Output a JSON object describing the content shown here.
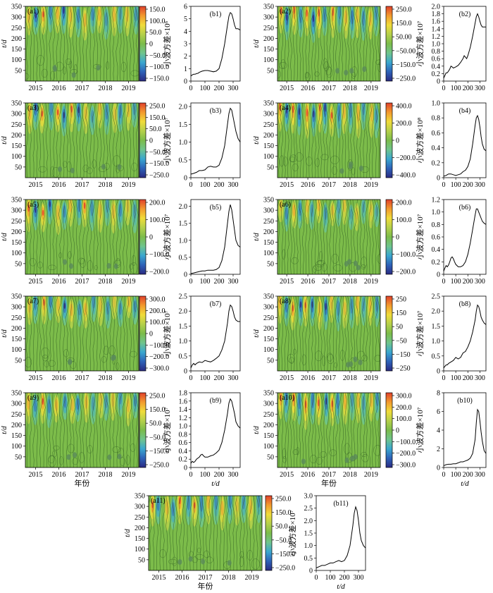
{
  "chart_data": {
    "type": "wavelet-contour-and-variance-panels",
    "contour_common": {
      "years": [
        "2015",
        "2016",
        "2017",
        "2018",
        "2019"
      ],
      "y_ticks": [
        "50",
        "100",
        "150",
        "200",
        "250",
        "300",
        "350"
      ],
      "y_label": "t/d",
      "x_label": "年份",
      "ylim": [
        0,
        350
      ]
    },
    "variance_common": {
      "x_ticks": [
        "0",
        "100",
        "200",
        "300"
      ],
      "x_label": "t/d",
      "xlim": [
        0,
        350
      ]
    },
    "colors": {
      "contour_bg": "#7cbc4a",
      "contour_line": "#2f5b22",
      "colorbar": [
        "#2a2a82",
        "#2e62b8",
        "#3aa7cf",
        "#6fc48d",
        "#7cbc4a",
        "#b5d04a",
        "#f0dc3a",
        "#f29a2e",
        "#e0402b"
      ]
    },
    "contours": [
      {
        "label": "(a1)",
        "colorbar_ticks": [
          "150.0",
          "100.0",
          "50.0",
          "0",
          "−50.0",
          "−100.0",
          "−150.0"
        ],
        "amp": 0.9,
        "xlabel": false
      },
      {
        "label": "(a2)",
        "colorbar_ticks": [
          "250.0",
          "150.0",
          "50.00",
          "−50.00",
          "−150.0",
          "−250.0"
        ],
        "amp": 1.0,
        "xlabel": false
      },
      {
        "label": "(a3)",
        "colorbar_ticks": [
          "250.0",
          "150.0",
          "50.0",
          "0",
          "−50.0",
          "−150.0",
          "−250.0"
        ],
        "amp": 0.9,
        "xlabel": false
      },
      {
        "label": "(a4)",
        "colorbar_ticks": [
          "400.0",
          "200.0",
          "0",
          "−200.0",
          "−400.0"
        ],
        "amp": 1.0,
        "xlabel": false
      },
      {
        "label": "(a5)",
        "colorbar_ticks": [
          "200.0",
          "100.0",
          "0",
          "−100.0",
          "−200.0"
        ],
        "amp": 0.9,
        "xlabel": false
      },
      {
        "label": "(a6)",
        "colorbar_ticks": [
          "200.0",
          "100.0",
          "0",
          "−100.0",
          "−200.0"
        ],
        "amp": 0.75,
        "xlabel": false
      },
      {
        "label": "(a7)",
        "colorbar_ticks": [
          "300.0",
          "200.0",
          "100.0",
          "0",
          "−100.0",
          "−200.0",
          "−300.0"
        ],
        "amp": 0.8,
        "xlabel": false
      },
      {
        "label": "(a8)",
        "colorbar_ticks": [
          "250",
          "150",
          "50",
          "−50",
          "−150",
          "−250"
        ],
        "amp": 0.95,
        "xlabel": false
      },
      {
        "label": "(a9)",
        "colorbar_ticks": [
          "250.0",
          "150.0",
          "50.0",
          "−50.0",
          "−150.0",
          "−250.0"
        ],
        "amp": 0.85,
        "xlabel": true
      },
      {
        "label": "(a10)",
        "colorbar_ticks": [
          "300.0",
          "200.0",
          "100.0",
          "0",
          "−100.0",
          "−200.0",
          "−300.0"
        ],
        "amp": 1.0,
        "xlabel": true
      },
      {
        "label": "(a11)",
        "colorbar_ticks": [
          "250.0",
          "150.0",
          "50.0",
          "−50.0",
          "−150.0",
          "−250.0"
        ],
        "amp": 0.95,
        "xlabel": true
      }
    ],
    "variance": [
      {
        "label": "(b1)",
        "ylabel": "小波方差×10⁶",
        "y_ticks": [
          "0",
          "1",
          "2",
          "3",
          "4",
          "5",
          "6"
        ],
        "ylim": [
          0,
          6
        ],
        "xlabel": false,
        "x": [
          0,
          10,
          20,
          30,
          40,
          50,
          60,
          80,
          100,
          120,
          140,
          160,
          180,
          200,
          220,
          240,
          260,
          270,
          280,
          290,
          300,
          310,
          320,
          335,
          350
        ],
        "y": [
          0.4,
          0.5,
          0.55,
          0.55,
          0.6,
          0.62,
          0.7,
          0.8,
          0.85,
          0.85,
          0.8,
          0.75,
          0.8,
          1.0,
          1.8,
          3.0,
          4.5,
          5.2,
          5.5,
          5.4,
          5.0,
          4.5,
          4.2,
          4.2,
          4.1
        ]
      },
      {
        "label": "(b2)",
        "ylabel": "小波方差×10⁷",
        "y_ticks": [
          "0",
          "0.2",
          "0.4",
          "0.6",
          "0.8",
          "1.0",
          "1.2",
          "1.4",
          "1.6",
          "1.8",
          "2.0"
        ],
        "ylim": [
          0,
          2
        ],
        "xlabel": false,
        "x": [
          0,
          10,
          20,
          30,
          40,
          50,
          60,
          70,
          80,
          100,
          120,
          140,
          160,
          170,
          180,
          190,
          200,
          220,
          240,
          260,
          270,
          280,
          290,
          300,
          310,
          320,
          335,
          350
        ],
        "y": [
          0.08,
          0.15,
          0.22,
          0.22,
          0.27,
          0.32,
          0.4,
          0.38,
          0.35,
          0.38,
          0.42,
          0.5,
          0.6,
          0.68,
          0.64,
          0.6,
          0.68,
          0.9,
          1.2,
          1.55,
          1.72,
          1.8,
          1.72,
          1.6,
          1.5,
          1.45,
          1.45,
          1.45
        ]
      },
      {
        "label": "(b3)",
        "ylabel": "小波方差×10⁷",
        "y_ticks": [
          "0",
          "0.5",
          "1.0",
          "1.5",
          "2.0"
        ],
        "ylim": [
          0,
          2.1
        ],
        "xlabel": false,
        "x": [
          0,
          20,
          40,
          60,
          80,
          100,
          120,
          140,
          160,
          180,
          200,
          220,
          240,
          260,
          270,
          280,
          290,
          300,
          310,
          320,
          335,
          350
        ],
        "y": [
          0.1,
          0.12,
          0.15,
          0.2,
          0.2,
          0.22,
          0.3,
          0.32,
          0.3,
          0.3,
          0.35,
          0.55,
          0.9,
          1.5,
          1.8,
          1.95,
          1.9,
          1.7,
          1.5,
          1.3,
          1.1,
          1.0
        ]
      },
      {
        "label": "(b4)",
        "ylabel": "小波方差×10⁸",
        "y_ticks": [
          "0",
          "0.2",
          "0.4",
          "0.6",
          "0.8",
          "1.0"
        ],
        "ylim": [
          0,
          1
        ],
        "xlabel": false,
        "x": [
          0,
          20,
          40,
          60,
          80,
          100,
          120,
          140,
          160,
          180,
          200,
          220,
          240,
          260,
          270,
          280,
          290,
          300,
          310,
          320,
          335,
          350
        ],
        "y": [
          0.02,
          0.03,
          0.05,
          0.05,
          0.04,
          0.03,
          0.04,
          0.05,
          0.08,
          0.1,
          0.15,
          0.25,
          0.45,
          0.7,
          0.8,
          0.83,
          0.78,
          0.68,
          0.55,
          0.45,
          0.38,
          0.36
        ]
      },
      {
        "label": "(b5)",
        "ylabel": "小波方差×10⁷",
        "y_ticks": [
          "0",
          "0.5",
          "1.0",
          "1.5",
          "2.0"
        ],
        "ylim": [
          0,
          2.2
        ],
        "xlabel": false,
        "x": [
          0,
          20,
          40,
          60,
          80,
          100,
          120,
          140,
          160,
          180,
          200,
          220,
          240,
          260,
          270,
          280,
          290,
          300,
          310,
          320,
          335,
          350
        ],
        "y": [
          0.02,
          0.04,
          0.06,
          0.08,
          0.1,
          0.1,
          0.12,
          0.12,
          0.12,
          0.14,
          0.2,
          0.4,
          0.8,
          1.5,
          1.85,
          2.05,
          1.9,
          1.6,
          1.3,
          1.0,
          0.85,
          0.8
        ]
      },
      {
        "label": "(b6)",
        "ylabel": "小波方差×10⁷",
        "y_ticks": [
          "0",
          "0.2",
          "0.4",
          "0.6",
          "0.8",
          "1.0",
          "1.2"
        ],
        "ylim": [
          0,
          1.2
        ],
        "xlabel": false,
        "x": [
          0,
          10,
          20,
          30,
          40,
          50,
          60,
          70,
          80,
          90,
          100,
          120,
          140,
          160,
          180,
          200,
          220,
          240,
          260,
          270,
          280,
          290,
          300,
          310,
          320,
          335,
          350
        ],
        "y": [
          0.05,
          0.1,
          0.14,
          0.12,
          0.15,
          0.2,
          0.26,
          0.28,
          0.25,
          0.2,
          0.16,
          0.12,
          0.12,
          0.14,
          0.2,
          0.32,
          0.5,
          0.72,
          0.95,
          1.05,
          1.05,
          1.0,
          0.95,
          0.9,
          0.85,
          0.82,
          0.8
        ]
      },
      {
        "label": "(b7)",
        "ylabel": "小波方差×10⁷",
        "y_ticks": [
          "0",
          "0.5",
          "1.0",
          "1.5",
          "2.0",
          "2.5"
        ],
        "ylim": [
          0,
          2.5
        ],
        "xlabel": false,
        "x": [
          0,
          10,
          20,
          30,
          40,
          60,
          80,
          100,
          120,
          140,
          160,
          180,
          200,
          220,
          240,
          260,
          270,
          280,
          290,
          300,
          310,
          320,
          335,
          350
        ],
        "y": [
          0.1,
          0.2,
          0.25,
          0.2,
          0.25,
          0.3,
          0.28,
          0.35,
          0.32,
          0.3,
          0.35,
          0.42,
          0.5,
          0.7,
          1.0,
          1.6,
          2.0,
          2.2,
          2.15,
          2.0,
          1.8,
          1.7,
          1.65,
          1.65
        ]
      },
      {
        "label": "(b8)",
        "ylabel": "小波方差×10⁷",
        "y_ticks": [
          "0",
          "0.5",
          "1.0",
          "1.5",
          "2.0",
          "2.5"
        ],
        "ylim": [
          0,
          2.5
        ],
        "xlabel": false,
        "x": [
          0,
          10,
          20,
          30,
          40,
          60,
          80,
          100,
          120,
          140,
          160,
          180,
          200,
          220,
          240,
          260,
          270,
          280,
          290,
          300,
          310,
          320,
          335,
          350
        ],
        "y": [
          0.1,
          0.15,
          0.2,
          0.2,
          0.25,
          0.3,
          0.35,
          0.45,
          0.4,
          0.45,
          0.6,
          0.65,
          0.8,
          1.0,
          1.3,
          1.7,
          2.0,
          2.2,
          2.15,
          2.0,
          1.8,
          1.7,
          1.6,
          1.55
        ]
      },
      {
        "label": "(b9)",
        "ylabel": "小波方差×10⁷",
        "y_ticks": [
          "0",
          "0.2",
          "0.4",
          "0.6",
          "0.8",
          "1.0",
          "1.2",
          "1.4",
          "1.6",
          "1.8"
        ],
        "ylim": [
          0,
          1.8
        ],
        "xlabel": true,
        "x": [
          0,
          10,
          20,
          30,
          40,
          60,
          70,
          80,
          90,
          100,
          120,
          140,
          160,
          180,
          200,
          220,
          240,
          260,
          270,
          280,
          290,
          300,
          310,
          320,
          335,
          350
        ],
        "y": [
          0.1,
          0.15,
          0.12,
          0.15,
          0.2,
          0.25,
          0.3,
          0.32,
          0.28,
          0.25,
          0.25,
          0.28,
          0.3,
          0.35,
          0.42,
          0.6,
          0.9,
          1.3,
          1.55,
          1.65,
          1.6,
          1.45,
          1.3,
          1.1,
          1.0,
          0.95
        ]
      },
      {
        "label": "(b10)",
        "ylabel": "小波方差×10⁷",
        "y_ticks": [
          "0",
          "2",
          "4",
          "6",
          "8"
        ],
        "ylim": [
          0,
          8
        ],
        "xlabel": true,
        "x": [
          0,
          20,
          40,
          60,
          80,
          100,
          120,
          140,
          160,
          180,
          200,
          220,
          240,
          260,
          270,
          280,
          290,
          300,
          310,
          320,
          335,
          350
        ],
        "y": [
          0.2,
          0.3,
          0.35,
          0.35,
          0.4,
          0.4,
          0.5,
          0.6,
          0.6,
          0.7,
          0.8,
          1.0,
          1.5,
          3.0,
          4.8,
          6.2,
          6.0,
          5.0,
          3.8,
          2.8,
          1.8,
          1.5
        ]
      },
      {
        "label": "(b11)",
        "ylabel": "小波方差×10⁷",
        "y_ticks": [
          "0",
          "0.5",
          "1.0",
          "1.5",
          "2.0",
          "2.5",
          "3.0"
        ],
        "ylim": [
          0,
          3
        ],
        "xlabel": true,
        "x": [
          0,
          20,
          40,
          60,
          80,
          100,
          120,
          140,
          160,
          180,
          200,
          220,
          240,
          260,
          270,
          280,
          290,
          300,
          310,
          320,
          335,
          350
        ],
        "y": [
          0.1,
          0.15,
          0.2,
          0.2,
          0.25,
          0.3,
          0.3,
          0.35,
          0.4,
          0.35,
          0.4,
          0.6,
          1.0,
          1.8,
          2.3,
          2.55,
          2.4,
          2.0,
          1.5,
          1.2,
          1.0,
          0.9
        ]
      }
    ]
  }
}
